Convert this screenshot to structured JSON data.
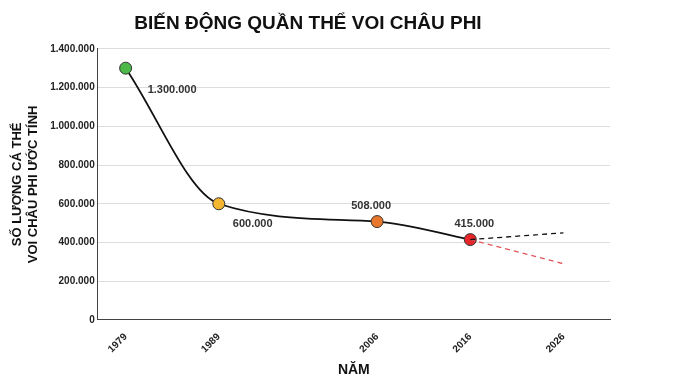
{
  "chart_data": {
    "type": "line",
    "title": "BIẾN ĐỘNG QUẦN THỂ VOI CHÂU PHI",
    "x_label": "NĂM",
    "y_label": [
      "SỐ LƯỢNG CÁ THỂ",
      "VOI CHÂU PHI ƯỚC TÍNH"
    ],
    "xlim": [
      1976,
      2031
    ],
    "xticks": [
      1979,
      1989,
      2006,
      2016,
      2026
    ],
    "ylim": [
      0,
      1400000
    ],
    "yticks": [
      0,
      {
        "value": 200000,
        "label": "200.000"
      },
      {
        "value": 400000,
        "label": "400.000"
      },
      {
        "value": 600000,
        "label": "600.000"
      },
      {
        "value": 800000,
        "label": "800.000"
      },
      {
        "value": 1000000,
        "label": "1.000.000"
      },
      {
        "value": 1200000,
        "label": "1.200.000"
      },
      {
        "value": 1400000,
        "label": "1.400.000"
      }
    ],
    "grid": "y",
    "series": [
      {
        "x": [
          1979,
          1989,
          2006,
          2016
        ],
        "values": [
          1300000,
          600000,
          508000,
          415000
        ],
        "value_labels": [
          "1.300.000",
          "600.000",
          "508.000",
          "415.000"
        ],
        "data_labels": true,
        "color": "#111111",
        "colors": [
          "#4cb848",
          "#f2b630",
          "#e8772e",
          "#e8262a"
        ],
        "marker": "circle",
        "line_style": "solid"
      },
      {
        "x": [
          2016,
          2026
        ],
        "values": [
          415000,
          450000
        ],
        "color": "#111111",
        "marker": "none",
        "line_style": "dashed"
      },
      {
        "x": [
          2016,
          2026
        ],
        "values": [
          415000,
          290000
        ],
        "color": "#e0575b",
        "marker": "none",
        "line_style": "dashed"
      }
    ]
  }
}
